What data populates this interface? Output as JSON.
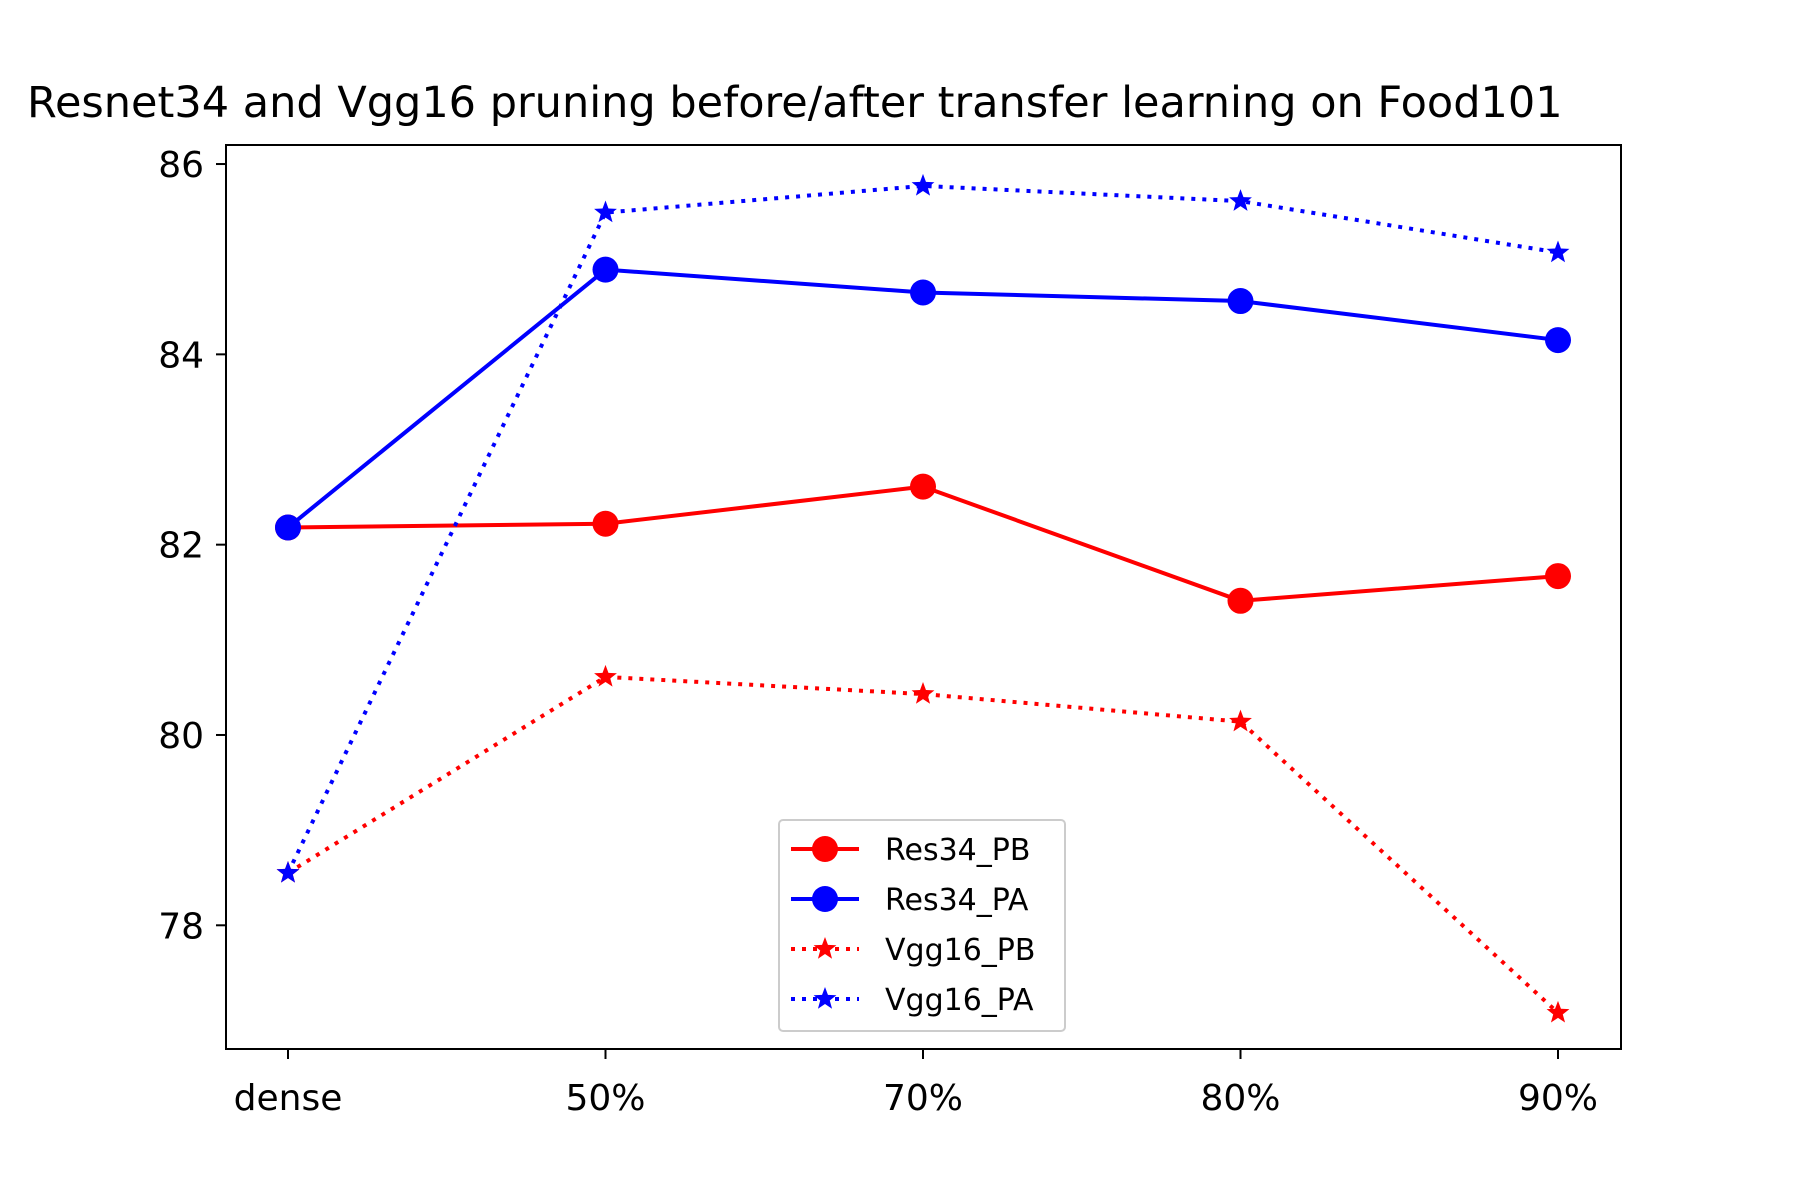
{
  "chart_data": {
    "type": "line",
    "title": "Resnet34 and Vgg16 pruning before/after transfer learning on Food101",
    "xlabel": "",
    "ylabel": "",
    "categories": [
      "dense",
      "50%",
      "70%",
      "80%",
      "90%"
    ],
    "yticks": [
      78,
      80,
      82,
      84,
      86
    ],
    "ylim": [
      76.7,
      86.2
    ],
    "grid": false,
    "legend_position": "lower-center",
    "series": [
      {
        "name": "Res34_PB",
        "values": [
          82.18,
          82.22,
          82.61,
          81.41,
          81.67
        ],
        "color": "#ff0000",
        "line_style": "solid",
        "marker": "circle"
      },
      {
        "name": "Res34_PA",
        "values": [
          82.18,
          84.89,
          84.65,
          84.56,
          84.15
        ],
        "color": "#0000ff",
        "line_style": "solid",
        "marker": "circle"
      },
      {
        "name": "Vgg16_PB",
        "values": [
          78.55,
          80.61,
          80.43,
          80.14,
          77.08
        ],
        "color": "#ff0000",
        "line_style": "dotted",
        "marker": "star"
      },
      {
        "name": "Vgg16_PA",
        "values": [
          78.55,
          85.49,
          85.77,
          85.61,
          85.07
        ],
        "color": "#0000ff",
        "line_style": "dotted",
        "marker": "star"
      }
    ]
  }
}
